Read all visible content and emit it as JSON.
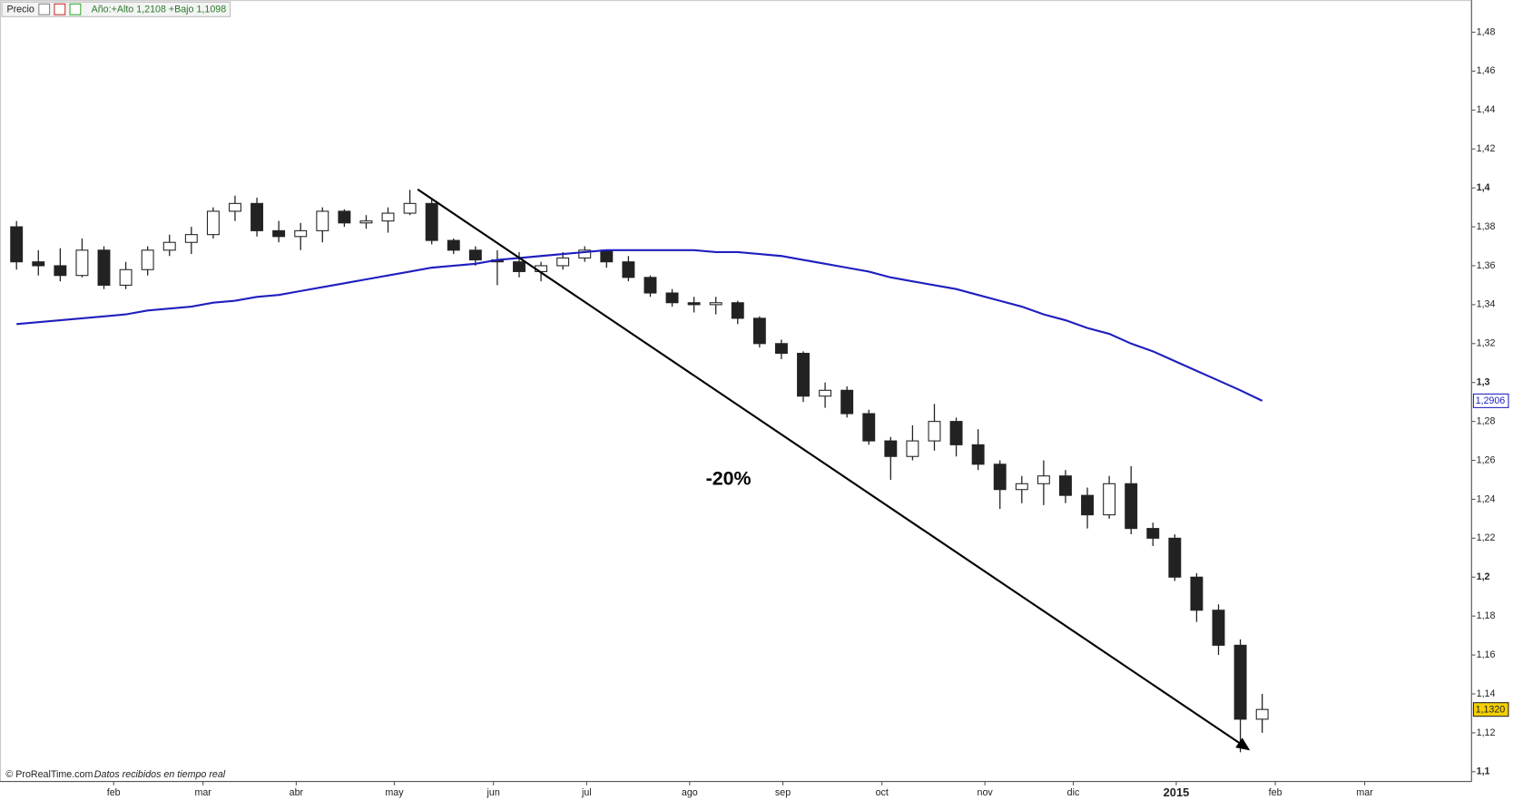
{
  "chart_data": {
    "type": "candlestick",
    "header": {
      "price_label": "Precio",
      "range_label": "Año:+Alto 1,2108 +Bajo 1,1098"
    },
    "footer": {
      "source": "© ProRealTime.com",
      "note": "Datos recibidos en tiempo real"
    },
    "annotation": "-20%",
    "categories": [
      "feb",
      "mar",
      "abr",
      "may",
      "jun",
      "jul",
      "ago",
      "sep",
      "oct",
      "nov",
      "dic",
      "2015",
      "feb",
      "mar"
    ],
    "candles": {
      "up_color": "#ffffff",
      "down_color": "#222222",
      "open": [
        1.38,
        1.362,
        1.36,
        1.355,
        1.368,
        1.35,
        1.358,
        1.368,
        1.372,
        1.376,
        1.388,
        1.392,
        1.378,
        1.375,
        1.378,
        1.388,
        1.382,
        1.383,
        1.387,
        1.392,
        1.373,
        1.368,
        1.363,
        1.362,
        1.357,
        1.36,
        1.364,
        1.368,
        1.362,
        1.354,
        1.346,
        1.341,
        1.34,
        1.341,
        1.333,
        1.32,
        1.315,
        1.293,
        1.296,
        1.284,
        1.27,
        1.262,
        1.27,
        1.28,
        1.268,
        1.258,
        1.245,
        1.248,
        1.252,
        1.242,
        1.232,
        1.248,
        1.225,
        1.22,
        1.2,
        1.183,
        1.165,
        1.127
      ],
      "high": [
        1.383,
        1.368,
        1.369,
        1.374,
        1.37,
        1.362,
        1.37,
        1.376,
        1.38,
        1.39,
        1.396,
        1.395,
        1.383,
        1.382,
        1.39,
        1.389,
        1.386,
        1.39,
        1.399,
        1.394,
        1.374,
        1.37,
        1.368,
        1.367,
        1.362,
        1.367,
        1.37,
        1.368,
        1.365,
        1.355,
        1.348,
        1.344,
        1.344,
        1.342,
        1.334,
        1.322,
        1.316,
        1.3,
        1.298,
        1.286,
        1.272,
        1.278,
        1.289,
        1.282,
        1.276,
        1.26,
        1.252,
        1.26,
        1.255,
        1.246,
        1.252,
        1.257,
        1.228,
        1.222,
        1.202,
        1.186,
        1.168,
        1.14
      ],
      "low": [
        1.358,
        1.355,
        1.352,
        1.354,
        1.348,
        1.348,
        1.355,
        1.365,
        1.366,
        1.374,
        1.383,
        1.375,
        1.372,
        1.368,
        1.372,
        1.38,
        1.379,
        1.377,
        1.386,
        1.371,
        1.366,
        1.36,
        1.35,
        1.354,
        1.352,
        1.358,
        1.362,
        1.359,
        1.352,
        1.344,
        1.339,
        1.336,
        1.335,
        1.33,
        1.318,
        1.312,
        1.29,
        1.287,
        1.282,
        1.268,
        1.25,
        1.26,
        1.265,
        1.262,
        1.255,
        1.235,
        1.238,
        1.237,
        1.238,
        1.225,
        1.23,
        1.222,
        1.216,
        1.198,
        1.177,
        1.16,
        1.11,
        1.12
      ],
      "close": [
        1.362,
        1.36,
        1.355,
        1.368,
        1.35,
        1.358,
        1.368,
        1.372,
        1.376,
        1.388,
        1.392,
        1.378,
        1.375,
        1.378,
        1.388,
        1.382,
        1.383,
        1.387,
        1.392,
        1.373,
        1.368,
        1.363,
        1.362,
        1.357,
        1.36,
        1.364,
        1.368,
        1.362,
        1.354,
        1.346,
        1.341,
        1.34,
        1.341,
        1.333,
        1.32,
        1.315,
        1.293,
        1.296,
        1.284,
        1.27,
        1.262,
        1.27,
        1.28,
        1.268,
        1.258,
        1.245,
        1.248,
        1.252,
        1.242,
        1.232,
        1.248,
        1.225,
        1.22,
        1.2,
        1.183,
        1.165,
        1.127,
        1.132
      ]
    },
    "moving_average": {
      "color": "#1f1fbf",
      "values": [
        1.33,
        1.331,
        1.332,
        1.333,
        1.334,
        1.335,
        1.337,
        1.338,
        1.339,
        1.341,
        1.342,
        1.344,
        1.345,
        1.347,
        1.349,
        1.351,
        1.353,
        1.355,
        1.357,
        1.359,
        1.36,
        1.361,
        1.363,
        1.364,
        1.365,
        1.366,
        1.367,
        1.368,
        1.368,
        1.368,
        1.368,
        1.368,
        1.367,
        1.367,
        1.366,
        1.365,
        1.363,
        1.361,
        1.359,
        1.357,
        1.354,
        1.352,
        1.35,
        1.348,
        1.345,
        1.342,
        1.339,
        1.335,
        1.332,
        1.328,
        1.325,
        1.32,
        1.316,
        1.311,
        1.306,
        1.301,
        1.296,
        1.2906
      ]
    },
    "price_tags": [
      {
        "value": 1.2906,
        "label": "1,2906",
        "color": "#1f1fbf",
        "fill": "#ffffff"
      },
      {
        "value": 1.132,
        "label": "1,1320",
        "color": "#222222",
        "fill": "#f5d000"
      }
    ],
    "ylim": [
      1.095,
      1.4965
    ],
    "yticks": [
      {
        "value": 1.1,
        "label": "1,1"
      },
      {
        "value": 1.12,
        "label": "1,12"
      },
      {
        "value": 1.14,
        "label": "1,14"
      },
      {
        "value": 1.16,
        "label": "1,16"
      },
      {
        "value": 1.18,
        "label": "1,18"
      },
      {
        "value": 1.2,
        "label": "1,2"
      },
      {
        "value": 1.22,
        "label": "1,22"
      },
      {
        "value": 1.24,
        "label": "1,24"
      },
      {
        "value": 1.26,
        "label": "1,26"
      },
      {
        "value": 1.28,
        "label": "1,28"
      },
      {
        "value": 1.3,
        "label": "1,3"
      },
      {
        "value": 1.32,
        "label": "1,32"
      },
      {
        "value": 1.34,
        "label": "1,34"
      },
      {
        "value": 1.36,
        "label": "1,36"
      },
      {
        "value": 1.38,
        "label": "1,38"
      },
      {
        "value": 1.4,
        "label": "1,4"
      },
      {
        "value": 1.42,
        "label": "1,42"
      },
      {
        "value": 1.44,
        "label": "1,44"
      },
      {
        "value": 1.46,
        "label": "1,46"
      },
      {
        "value": 1.48,
        "label": "1,48"
      }
    ],
    "grid": false
  }
}
